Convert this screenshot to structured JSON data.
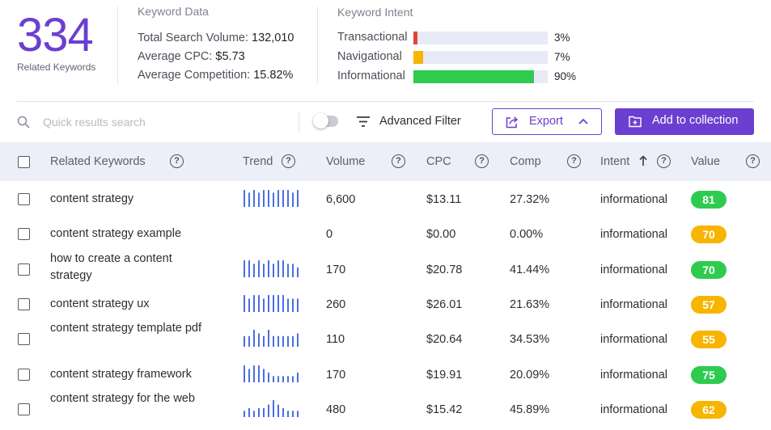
{
  "summary": {
    "count": "334",
    "count_label": "Related Keywords",
    "keyword_data": {
      "title": "Keyword Data",
      "total_search_volume_label": "Total Search Volume:",
      "total_search_volume": "132,010",
      "average_cpc_label": "Average CPC:",
      "average_cpc": "$5.73",
      "average_competition_label": "Average Competition:",
      "average_competition": "15.82%"
    },
    "keyword_intent": {
      "title": "Keyword Intent",
      "items": [
        {
          "label": "Transactional",
          "pct": "3%",
          "value": 0.03,
          "color": "#e0453a"
        },
        {
          "label": "Navigational",
          "pct": "7%",
          "value": 0.07,
          "color": "#f7b500"
        },
        {
          "label": "Informational",
          "pct": "90%",
          "value": 0.9,
          "color": "#2ecb4f"
        }
      ]
    }
  },
  "toolbar": {
    "search_placeholder": "Quick results search",
    "advanced_filter_label": "Advanced Filter",
    "export_label": "Export",
    "add_to_collection_label": "Add to collection",
    "toggle_on": false
  },
  "table": {
    "headers": {
      "keyword": "Related Keywords",
      "trend": "Trend",
      "volume": "Volume",
      "cpc": "CPC",
      "comp": "Comp",
      "intent": "Intent",
      "value": "Value"
    },
    "trend_color": "#4a6fe0",
    "rows": [
      {
        "keyword": "content strategy",
        "volume": "6,600",
        "cpc": "$13.11",
        "comp": "27.32%",
        "intent": "informational",
        "value": "81",
        "badge_color": "#2ecb4f",
        "trend": [
          0.95,
          0.8,
          0.95,
          0.8,
          0.95,
          0.95,
          0.8,
          0.95,
          0.95,
          0.95,
          0.8,
          0.95
        ]
      },
      {
        "keyword": "content strategy example",
        "volume": "0",
        "cpc": "$0.00",
        "comp": "0.00%",
        "intent": "informational",
        "value": "70",
        "badge_color": "#f7b500",
        "trend": []
      },
      {
        "keyword": "how to create a content strategy",
        "volume": "170",
        "cpc": "$20.78",
        "comp": "41.44%",
        "intent": "informational",
        "value": "70",
        "badge_color": "#2ecb4f",
        "trend": [
          0.95,
          0.95,
          0.75,
          0.95,
          0.75,
          0.95,
          0.75,
          0.95,
          0.95,
          0.75,
          0.75,
          0.55
        ]
      },
      {
        "keyword": "content strategy ux",
        "volume": "260",
        "cpc": "$26.01",
        "comp": "21.63%",
        "intent": "informational",
        "value": "57",
        "badge_color": "#f7b500",
        "trend": [
          0.95,
          0.75,
          0.95,
          0.95,
          0.75,
          0.95,
          0.95,
          0.95,
          0.95,
          0.75,
          0.75,
          0.75
        ]
      },
      {
        "keyword": "content strategy template pdf",
        "volume": "110",
        "cpc": "$20.64",
        "comp": "34.53%",
        "intent": "informational",
        "value": "55",
        "badge_color": "#f7b500",
        "trend": [
          0.6,
          0.6,
          0.95,
          0.75,
          0.6,
          0.95,
          0.6,
          0.6,
          0.6,
          0.6,
          0.6,
          0.75
        ]
      },
      {
        "keyword": "content strategy framework",
        "volume": "170",
        "cpc": "$19.91",
        "comp": "20.09%",
        "intent": "informational",
        "value": "75",
        "badge_color": "#2ecb4f",
        "trend": [
          0.95,
          0.75,
          0.95,
          0.95,
          0.75,
          0.55,
          0.35,
          0.35,
          0.35,
          0.35,
          0.35,
          0.55
        ]
      },
      {
        "keyword": "content strategy for the web",
        "volume": "480",
        "cpc": "$15.42",
        "comp": "45.89%",
        "intent": "informational",
        "value": "62",
        "badge_color": "#f7b500",
        "trend": [
          0.35,
          0.5,
          0.35,
          0.5,
          0.5,
          0.7,
          0.95,
          0.7,
          0.5,
          0.35,
          0.35,
          0.35
        ]
      }
    ]
  }
}
